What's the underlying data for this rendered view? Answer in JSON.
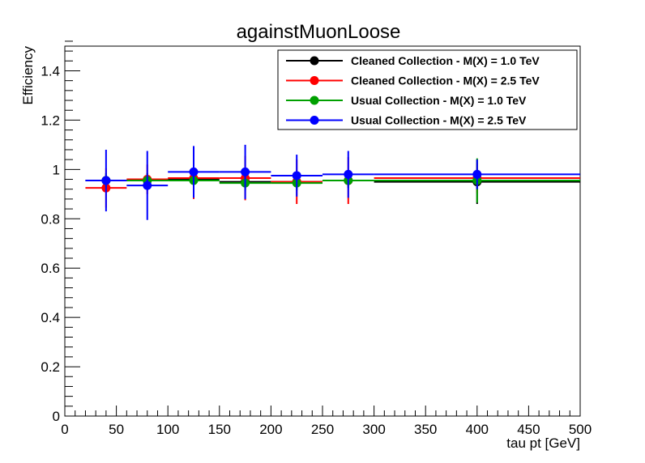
{
  "chart_data": {
    "type": "scatter",
    "title": "againstMuonLoose",
    "xlabel": "tau pt [GeV]",
    "ylabel": "Efficiency",
    "xlim": [
      0,
      500
    ],
    "ylim": [
      0,
      1.5
    ],
    "x_ticks": [
      "0",
      "50",
      "100",
      "150",
      "200",
      "250",
      "300",
      "350",
      "400",
      "450",
      "500"
    ],
    "y_ticks": [
      "0",
      "0.2",
      "0.4",
      "0.6",
      "0.8",
      "1",
      "1.2",
      "1.4"
    ],
    "grid": false,
    "legend_position": "top-right",
    "bins": [
      {
        "low": 20,
        "high": 60,
        "center": 40
      },
      {
        "low": 60,
        "high": 100,
        "center": 80
      },
      {
        "low": 100,
        "high": 150,
        "center": 125
      },
      {
        "low": 150,
        "high": 200,
        "center": 175
      },
      {
        "low": 200,
        "high": 250,
        "center": 225
      },
      {
        "low": 250,
        "high": 300,
        "center": 275
      },
      {
        "low": 300,
        "high": 500,
        "center": 400
      }
    ],
    "series": [
      {
        "name": "Cleaned Collection - M(X) = 1.0 TeV",
        "color": "#000000",
        "values": [
          0.955,
          0.955,
          0.96,
          0.95,
          0.95,
          0.955,
          0.95
        ],
        "errors": [
          0.03,
          0.03,
          0.03,
          0.03,
          0.03,
          0.03,
          0.09
        ]
      },
      {
        "name": "Cleaned Collection - M(X) = 2.5 TeV",
        "color": "#ff0000",
        "values": [
          0.925,
          0.96,
          0.965,
          0.965,
          0.95,
          0.955,
          0.965
        ],
        "errors": [
          0.08,
          0.06,
          0.085,
          0.09,
          0.09,
          0.095,
          0.06
        ]
      },
      {
        "name": "Usual Collection - M(X) = 1.0 TeV",
        "color": "#00a000",
        "values": [
          0.955,
          0.955,
          0.955,
          0.945,
          0.945,
          0.955,
          0.955
        ],
        "errors": [
          0.03,
          0.03,
          0.03,
          0.03,
          0.03,
          0.03,
          0.09
        ]
      },
      {
        "name": "Usual Collection - M(X) = 2.5 TeV",
        "color": "#0000ff",
        "values": [
          0.955,
          0.935,
          0.99,
          0.99,
          0.975,
          0.98,
          0.98
        ],
        "errors": [
          0.125,
          0.14,
          0.105,
          0.11,
          0.085,
          0.095,
          0.06
        ]
      }
    ]
  }
}
